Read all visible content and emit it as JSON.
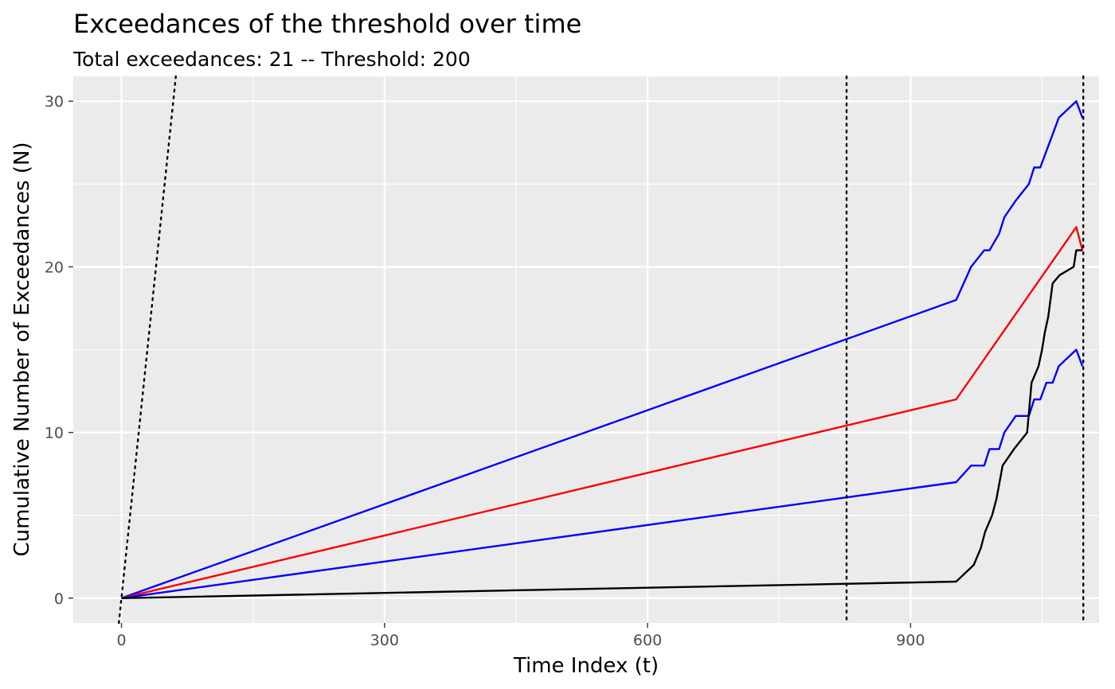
{
  "chart_data": {
    "type": "line",
    "title": "Exceedances of the threshold over time",
    "subtitle": "Total exceedances: 21  -- Threshold: 200",
    "xlabel": "Time Index (t)",
    "ylabel": "Cumulative Number of Exceedances (N)",
    "xlim": [
      -55,
      1115
    ],
    "ylim": [
      -1.5,
      31.5
    ],
    "x_ticks": [
      0,
      300,
      600,
      900
    ],
    "y_ticks": [
      0,
      10,
      20,
      30
    ],
    "grid": true,
    "legend": "none",
    "colors": {
      "panel": "#ebebeb",
      "grid": "#ffffff",
      "observed": "#000000",
      "expected": "#ff0000",
      "bounds": "#0000ff",
      "reference": "#000000"
    },
    "series": [
      {
        "color": "#0000ff",
        "x": [
          0,
          952,
          969,
          984,
          990,
          1001,
          1007,
          1020,
          1035,
          1041,
          1048,
          1055,
          1062,
          1069,
          1089,
          1096
        ],
        "y": [
          0,
          18,
          20,
          21,
          21,
          22,
          23,
          24,
          25,
          26,
          26,
          27,
          28,
          29,
          30,
          29
        ]
      },
      {
        "color": "#ff0000",
        "x": [
          0,
          952,
          1089,
          1096
        ],
        "y": [
          0,
          12,
          22.4,
          21
        ]
      },
      {
        "color": "#0000ff",
        "x": [
          0,
          952,
          969,
          984,
          990,
          1001,
          1007,
          1020,
          1035,
          1041,
          1048,
          1055,
          1062,
          1069,
          1089,
          1096
        ],
        "y": [
          0,
          7,
          8,
          8,
          9,
          9,
          10,
          11,
          11,
          12,
          12,
          13,
          13,
          14,
          15,
          14
        ]
      },
      {
        "color": "#000000",
        "x": [
          0,
          952,
          972,
          980,
          985,
          993,
          998,
          1005,
          1018,
          1033,
          1038,
          1046,
          1050,
          1053,
          1057,
          1062,
          1070,
          1086,
          1089,
          1096
        ],
        "y": [
          0,
          1,
          2,
          3,
          4,
          5,
          6,
          8,
          9,
          10,
          13,
          14,
          15,
          16,
          17,
          19,
          19.5,
          20,
          21,
          21
        ]
      }
    ],
    "reference_lines": [
      {
        "kind": "diagonal",
        "x": [
          -3,
          62
        ],
        "y": [
          -1.5,
          31.5
        ]
      },
      {
        "kind": "vertical",
        "x": 827
      },
      {
        "kind": "vertical",
        "x": 1097
      }
    ]
  }
}
